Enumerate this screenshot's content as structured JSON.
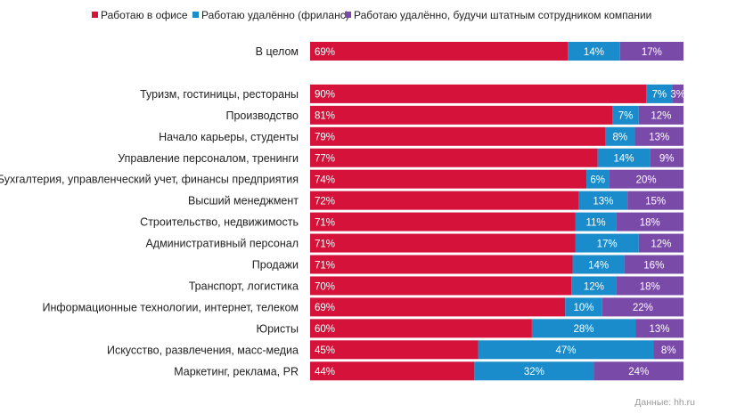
{
  "chart_data": {
    "type": "bar",
    "orientation": "horizontal",
    "stacked": true,
    "percent_stacked": true,
    "value_format": "{v}%",
    "legend_position": "top",
    "grid": false,
    "source": "Данные: hh.ru",
    "categories": [
      "В целом",
      "",
      "Туризм, гостиницы, рестораны",
      "Производство",
      "Начало карьеры, студенты",
      "Управление персоналом, тренинги",
      "Бухгалтерия, управленческий учет, финансы предприятия",
      "Высший менеджмент",
      "Строительство, недвижимость",
      "Административный персонал",
      "Продажи",
      "Транспорт, логистика",
      "Информационные технологии, интернет, телеком",
      "Юристы",
      "Искусство, развлечения, масс-медиа",
      "Маркетинг, реклама, PR"
    ],
    "series": [
      {
        "name": "Работаю в офисе",
        "color": "#d4123a",
        "values": [
          69,
          null,
          90,
          81,
          79,
          77,
          74,
          72,
          71,
          71,
          71,
          70,
          69,
          60,
          45,
          44
        ]
      },
      {
        "name": "Работаю удалённо (фриланс)",
        "color": "#1a8ccb",
        "values": [
          14,
          null,
          7,
          7,
          8,
          14,
          6,
          13,
          11,
          17,
          14,
          12,
          10,
          28,
          47,
          32
        ]
      },
      {
        "name": "Работаю удалённо, будучи штатным сотрудником компании",
        "color": "#7a4aa8",
        "values": [
          17,
          null,
          3,
          12,
          13,
          9,
          20,
          15,
          18,
          12,
          16,
          18,
          22,
          13,
          8,
          24
        ]
      }
    ]
  }
}
